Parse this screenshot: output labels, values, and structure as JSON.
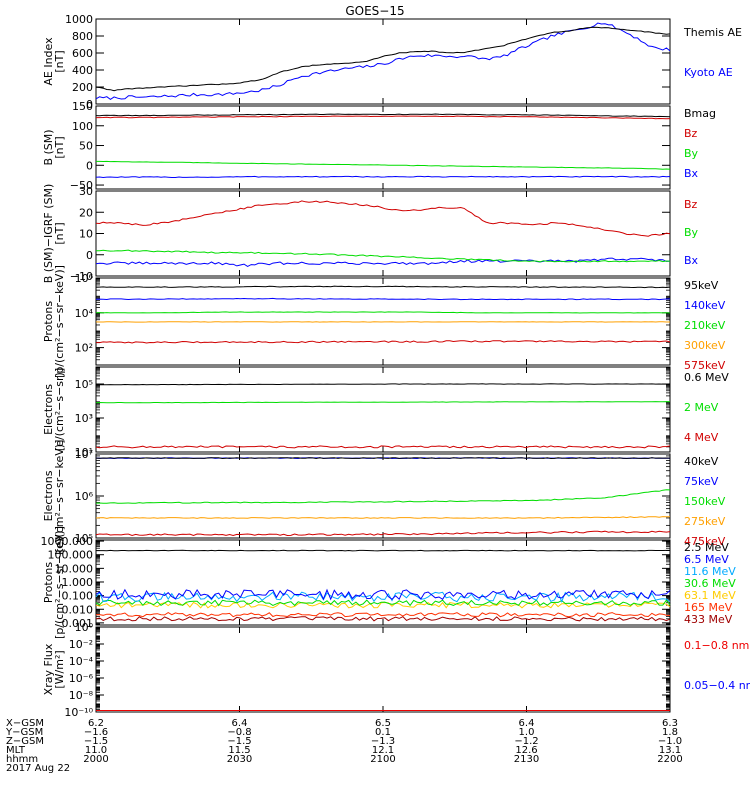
{
  "title": "GOES−15",
  "chart_data": [
    {
      "type": "line",
      "ylabel": [
        "AE Index",
        "[nT]"
      ],
      "ylim": [
        0,
        1000
      ],
      "yticks": [
        {
          "v": 0,
          "l": "0"
        },
        {
          "v": 200,
          "l": "200"
        },
        {
          "v": 400,
          "l": "400"
        },
        {
          "v": 600,
          "l": "600"
        },
        {
          "v": 800,
          "l": "800"
        },
        {
          "v": 1000,
          "l": "1000"
        }
      ],
      "legend_spacing": "lg",
      "series": [
        {
          "name": "Kyoto AE",
          "color": "#0000ff",
          "y": [
            70,
            70,
            80,
            80,
            90,
            100,
            110,
            110,
            120,
            140,
            170,
            230,
            320,
            360,
            390,
            420,
            440,
            470,
            530,
            570,
            570,
            560,
            560,
            530,
            550,
            640,
            720,
            800,
            850,
            900,
            960,
            880,
            780,
            660,
            640
          ],
          "noise": 18
        },
        {
          "name": "Themis AE",
          "color": "#000000",
          "y": [
            200,
            160,
            180,
            190,
            200,
            210,
            220,
            230,
            240,
            260,
            300,
            380,
            430,
            460,
            470,
            480,
            500,
            560,
            600,
            620,
            620,
            600,
            610,
            650,
            680,
            740,
            790,
            840,
            860,
            900,
            900,
            880,
            860,
            840,
            820
          ],
          "noise": 5
        }
      ]
    },
    {
      "type": "line",
      "ylabel": [
        "B (SM)",
        "[nT]"
      ],
      "ylim": [
        -60,
        150
      ],
      "yticks": [
        {
          "v": -50,
          "l": "−50"
        },
        {
          "v": 0,
          "l": "0"
        },
        {
          "v": 50,
          "l": "50"
        },
        {
          "v": 100,
          "l": "100"
        },
        {
          "v": 150,
          "l": "150"
        }
      ],
      "legend_spacing": "lg",
      "series": [
        {
          "name": "Bx",
          "color": "#0000ff",
          "y": [
            -30,
            -30,
            -30,
            -30,
            -30,
            -29,
            -29,
            -29,
            -29,
            -29,
            -29,
            -29,
            -29,
            -29,
            -29,
            -29,
            -29,
            -29,
            -29,
            -29
          ],
          "noise": 1
        },
        {
          "name": "By",
          "color": "#00dd00",
          "y": [
            10,
            9,
            8,
            7,
            6,
            5,
            4,
            3,
            2,
            1,
            0,
            -1,
            -2,
            -3,
            -4,
            -5,
            -6,
            -7,
            -8,
            -10
          ],
          "noise": 0.5
        },
        {
          "name": "Bz",
          "color": "#d00000",
          "y": [
            121,
            121,
            121,
            122,
            122,
            123,
            123,
            124,
            124,
            124,
            124,
            124,
            124,
            123,
            123,
            122,
            121,
            120,
            119,
            118
          ],
          "noise": 0.7
        },
        {
          "name": "Bmag",
          "color": "#000000",
          "y": [
            126,
            126,
            126,
            127,
            127,
            128,
            128,
            129,
            129,
            129,
            129,
            129,
            129,
            128,
            128,
            127,
            126,
            125,
            124,
            123
          ],
          "noise": 0.7
        }
      ]
    },
    {
      "type": "line",
      "ylabel": [
        "B (SM)−IGRF (SM)",
        "[nT]"
      ],
      "ylim": [
        -10,
        30
      ],
      "yticks": [
        {
          "v": -10,
          "l": "−10"
        },
        {
          "v": 0,
          "l": "0"
        },
        {
          "v": 10,
          "l": "10"
        },
        {
          "v": 20,
          "l": "20"
        },
        {
          "v": 30,
          "l": "30"
        }
      ],
      "legend_spacing": "lg",
      "series": [
        {
          "name": "Bx",
          "color": "#0000ff",
          "y": [
            -4,
            -4,
            -4,
            -4,
            -4,
            -5,
            -4,
            -4,
            -4,
            -4,
            -4,
            -4,
            -3,
            -3,
            -3,
            -3,
            -3,
            -2,
            -2,
            -3
          ],
          "noise": 0.6
        },
        {
          "name": "By",
          "color": "#00dd00",
          "y": [
            2,
            2,
            1.5,
            1.5,
            1,
            1,
            0.5,
            0.5,
            0,
            -0.5,
            -1,
            -1.5,
            -2,
            -2.5,
            -3,
            -3,
            -3,
            -3,
            -3,
            -3
          ],
          "noise": 0.3
        },
        {
          "name": "Bz",
          "color": "#d00000",
          "y": [
            15,
            15,
            14,
            15,
            17,
            19,
            21,
            23,
            24,
            25,
            25,
            24,
            23,
            21,
            21,
            22,
            22,
            15,
            15,
            14,
            15,
            14,
            12,
            10,
            9,
            10
          ],
          "noise": 0.4
        }
      ]
    },
    {
      "type": "line",
      "log": true,
      "ylabel": [
        "Protons",
        "[p/(cm²−s−sr−keV)]"
      ],
      "ylim": [
        10,
        1000000
      ],
      "yticks": [
        {
          "v": 100,
          "l": "10²"
        },
        {
          "v": 10000,
          "l": "10⁴"
        },
        {
          "v": 1000000,
          "l": "10⁶"
        }
      ],
      "legend_spacing": "md",
      "series": [
        {
          "name": "575keV",
          "color": "#d00000",
          "y": [
            200,
            200,
            210,
            210,
            220,
            220,
            230,
            230,
            220,
            220
          ],
          "noise": 0.04
        },
        {
          "name": "300keV",
          "color": "#ffa000",
          "y": [
            3000,
            3000,
            3000,
            3000,
            3000,
            3000,
            3000,
            3000,
            3000,
            3000
          ],
          "noise": 0.01
        },
        {
          "name": "210keV",
          "color": "#00dd00",
          "y": [
            10000,
            10000,
            11000,
            11000,
            11000,
            11000,
            10000,
            10000,
            10000,
            10000
          ],
          "noise": 0.01
        },
        {
          "name": "140keV",
          "color": "#0000ff",
          "y": [
            60000,
            62000,
            64000,
            64000,
            62000,
            60000,
            60000,
            60000,
            60000,
            60000
          ],
          "noise": 0.02
        },
        {
          "name": "95keV",
          "color": "#000000",
          "y": [
            300000,
            300000,
            310000,
            320000,
            330000,
            320000,
            310000,
            300000,
            300000,
            290000
          ],
          "noise": 0.02
        }
      ]
    },
    {
      "type": "line",
      "log": true,
      "ylabel": [
        "Electrons",
        "[e/(cm²−s−sr)]"
      ],
      "ylim": [
        10,
        1000000
      ],
      "yticks": [
        {
          "v": 10,
          "l": "10¹"
        },
        {
          "v": 1000,
          "l": "10³"
        },
        {
          "v": 100000,
          "l": "10⁵"
        }
      ],
      "legend_spacing": "xl",
      "series": [
        {
          "name": "4 MeV",
          "color": "#d00000",
          "y": [
            20,
            20,
            20,
            20,
            20,
            20,
            20,
            20,
            20,
            20
          ],
          "noise": 0.06
        },
        {
          "name": "2 MeV",
          "color": "#00dd00",
          "y": [
            8000,
            8000,
            8200,
            8400,
            8500,
            8600,
            8800,
            9000,
            9000,
            9000
          ],
          "noise": 0.01
        },
        {
          "name": "0.6 MeV",
          "color": "#000000",
          "y": [
            90000,
            92000,
            94000,
            96000,
            98000,
            100000,
            100000,
            100000,
            100000,
            100000
          ],
          "noise": 0.01
        }
      ]
    },
    {
      "type": "line",
      "log": true,
      "ylabel": [
        "Electrons",
        "[e/(cm²−s−sr−keV)]"
      ],
      "ylim": [
        100000,
        10000000
      ],
      "yticks": [
        {
          "v": 100000,
          "l": "10⁵"
        },
        {
          "v": 1000000,
          "l": "10⁶"
        },
        {
          "v": 10000000,
          "l": "10⁷"
        }
      ],
      "legend_spacing": "md",
      "series": [
        {
          "name": "475keV",
          "color": "#d00000",
          "y": [
            120000,
            120000,
            120000,
            120000,
            120000,
            125000,
            130000,
            135000,
            140000,
            140000
          ],
          "noise": 0.02
        },
        {
          "name": "275keV",
          "color": "#ffa000",
          "y": [
            300000,
            300000,
            300000,
            300000,
            300000,
            300000,
            300000,
            300000,
            310000,
            320000
          ],
          "noise": 0.01
        },
        {
          "name": "150keV",
          "color": "#00dd00",
          "y": [
            680000,
            690000,
            700000,
            700000,
            720000,
            740000,
            760000,
            800000,
            900000,
            1400000
          ],
          "noise": 0.01
        },
        {
          "name": "75keV",
          "color": "#0000ff",
          "y": [
            8000000,
            8000000,
            8000000,
            8000000,
            8000000,
            8000000,
            8000000,
            8000000,
            8000000,
            8000000
          ],
          "noise": 0.01
        },
        {
          "name": "40keV",
          "color": "#000000",
          "y": [
            8000000,
            8000000,
            8000000,
            8000000,
            8000000,
            8000000,
            8000000,
            8000000,
            8000000,
            8000000
          ],
          "noise": 0.01
        }
      ]
    },
    {
      "type": "line",
      "log": true,
      "ylabel": [
        "Protons",
        "[p/(cm²−s−sr−keV)]"
      ],
      "ylim": [
        0.0007,
        1200
      ],
      "yticks": [
        {
          "v": 0.001,
          "l": "0.001"
        },
        {
          "v": 0.01,
          "l": "0.010"
        },
        {
          "v": 0.1,
          "l": "0.100"
        },
        {
          "v": 1,
          "l": "1.000"
        },
        {
          "v": 10,
          "l": "10.000"
        },
        {
          "v": 100,
          "l": "100.000"
        },
        {
          "v": 1000,
          "l": "1000.000"
        }
      ],
      "legend_spacing": "sm",
      "series": [
        {
          "name": "433 MeV",
          "color": "#a00000",
          "y": [
            0.002,
            0.002,
            0.002,
            0.002,
            0.002,
            0.002,
            0.002,
            0.002,
            0.002,
            0.002
          ],
          "noise": 0.15
        },
        {
          "name": "165 MeV",
          "color": "#ff3000",
          "y": [
            0.004,
            0.004,
            0.004,
            0.004,
            0.004,
            0.004,
            0.004,
            0.004,
            0.004,
            0.004
          ],
          "noise": 0.15
        },
        {
          "name": "63.1 MeV",
          "color": "#ffcc00",
          "y": [
            0.02,
            0.02,
            0.02,
            0.02,
            0.02,
            0.02,
            0.02,
            0.02,
            0.02,
            0.02
          ],
          "noise": 0.2
        },
        {
          "name": "30.6 MeV",
          "color": "#00dd00",
          "y": [
            0.03,
            0.03,
            0.03,
            0.03,
            0.03,
            0.03,
            0.03,
            0.03,
            0.03,
            0.03
          ],
          "noise": 0.2
        },
        {
          "name": "11.6 MeV",
          "color": "#00aaff",
          "y": [
            0.08,
            0.08,
            0.08,
            0.08,
            0.08,
            0.08,
            0.08,
            0.08,
            0.08,
            0.08
          ],
          "noise": 0.35
        },
        {
          "name": "6.5 MeV",
          "color": "#0000ff",
          "y": [
            0.12,
            0.12,
            0.12,
            0.12,
            0.12,
            0.12,
            0.12,
            0.12,
            0.12,
            0.12
          ],
          "noise": 0.35
        },
        {
          "name": "2.5 MeV",
          "color": "#000000",
          "y": [
            200,
            200,
            200,
            200,
            200,
            200,
            200,
            200,
            200,
            200
          ],
          "noise": 0.02
        }
      ]
    },
    {
      "type": "line",
      "log": true,
      "ylabel": [
        "Xray Flux",
        "[W/m²]"
      ],
      "ylim": [
        1e-10,
        1
      ],
      "yticks": [
        {
          "v": 1e-10,
          "l": "10⁻¹⁰"
        },
        {
          "v": 1e-08,
          "l": "10⁻⁸"
        },
        {
          "v": 1e-06,
          "l": "10⁻⁶"
        },
        {
          "v": 0.0001,
          "l": "10⁻⁴"
        },
        {
          "v": 0.01,
          "l": "10⁻²"
        },
        {
          "v": 1,
          "l": "10⁰"
        }
      ],
      "legend_mode": "xray",
      "series": [
        {
          "name": "0.1−0.8 nm",
          "color": "#ee0000",
          "y": [
            1.5e-10,
            1.5e-10,
            1.5e-10,
            1.5e-10,
            1.5e-10,
            1.5e-10,
            1.5e-10,
            1.5e-10,
            1.5e-10,
            1.5e-10
          ],
          "noise": 0
        },
        {
          "name": "0.05−0.4 nm",
          "color": "#0000ff",
          "y": [],
          "noise": 0
        }
      ]
    }
  ],
  "xaxis": {
    "row_labels": [
      "X−GSM",
      "Y−GSM",
      "Z−GSM",
      "MLT",
      "hhmm",
      "2017 Aug 22"
    ],
    "columns": [
      [
        "6.2",
        "−1.6",
        "−1.5",
        "11.0",
        "2000"
      ],
      [
        "6.4",
        "−0.8",
        "−1.5",
        "11.5",
        "2030"
      ],
      [
        "6.5",
        "0.1",
        "−1.3",
        "12.1",
        "2100"
      ],
      [
        "6.4",
        "1.0",
        "−1.2",
        "12.6",
        "2130"
      ],
      [
        "6.3",
        "1.8",
        "−1.0",
        "13.1",
        "2200"
      ]
    ]
  }
}
